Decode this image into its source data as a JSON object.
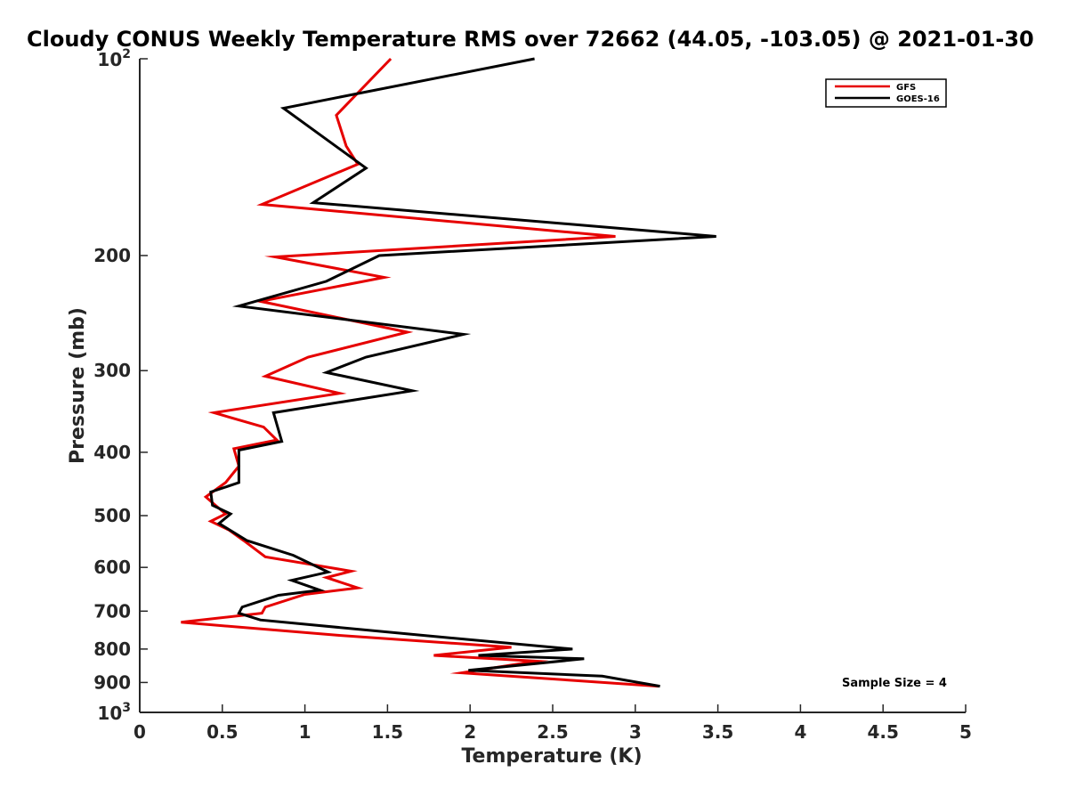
{
  "chart_data": {
    "type": "line",
    "title": "Cloudy CONUS Weekly Temperature RMS over 72662 (44.05, -103.05) @ 2021-01-30",
    "xlabel": "Temperature (K)",
    "ylabel": "Pressure (mb)",
    "xlim": [
      0,
      5
    ],
    "ylim": [
      100,
      1000
    ],
    "yscale": "log",
    "y_reversed": true,
    "grid": false,
    "legend_position": "top-right",
    "x_ticks": [
      "0",
      "0.5",
      "1",
      "1.5",
      "2",
      "2.5",
      "3",
      "3.5",
      "4",
      "4.5",
      "5"
    ],
    "x_tick_values": [
      0,
      0.5,
      1,
      1.5,
      2,
      2.5,
      3,
      3.5,
      4,
      4.5,
      5
    ],
    "y_ticks": [
      {
        "value": 100,
        "base": "10",
        "exp": "2"
      },
      {
        "value": 200,
        "label": "200"
      },
      {
        "value": 300,
        "label": "300"
      },
      {
        "value": 400,
        "label": "400"
      },
      {
        "value": 500,
        "label": "500"
      },
      {
        "value": 600,
        "label": "600"
      },
      {
        "value": 700,
        "label": "700"
      },
      {
        "value": 800,
        "label": "800"
      },
      {
        "value": 900,
        "label": "900"
      },
      {
        "value": 1000,
        "base": "10",
        "exp": "3"
      }
    ],
    "annotation": "Sample Size = 4",
    "series": [
      {
        "name": "GFS",
        "color": "#e60000",
        "points": [
          [
            1.52,
            100
          ],
          [
            1.19,
            122
          ],
          [
            1.25,
            136
          ],
          [
            1.32,
            145
          ],
          [
            0.74,
            167
          ],
          [
            2.88,
            187
          ],
          [
            0.82,
            201
          ],
          [
            1.48,
            216
          ],
          [
            0.73,
            235
          ],
          [
            1.62,
            262
          ],
          [
            1.02,
            286
          ],
          [
            0.76,
            306
          ],
          [
            1.21,
            325
          ],
          [
            0.45,
            348
          ],
          [
            0.75,
            366
          ],
          [
            0.83,
            383
          ],
          [
            0.57,
            395
          ],
          [
            0.6,
            420
          ],
          [
            0.52,
            445
          ],
          [
            0.4,
            468
          ],
          [
            0.47,
            485
          ],
          [
            0.52,
            497
          ],
          [
            0.43,
            510
          ],
          [
            0.54,
            526
          ],
          [
            0.63,
            546
          ],
          [
            0.76,
            578
          ],
          [
            1.28,
            608
          ],
          [
            1.13,
            622
          ],
          [
            1.32,
            645
          ],
          [
            1.0,
            660
          ],
          [
            0.76,
            690
          ],
          [
            0.74,
            705
          ],
          [
            0.25,
            728
          ],
          [
            1.2,
            762
          ],
          [
            2.25,
            795
          ],
          [
            1.78,
            818
          ],
          [
            2.4,
            835
          ],
          [
            1.95,
            870
          ],
          [
            3.14,
            912
          ]
        ]
      },
      {
        "name": "GOES-16",
        "color": "#000000",
        "points": [
          [
            2.39,
            100
          ],
          [
            0.87,
            119
          ],
          [
            1.37,
            147
          ],
          [
            1.05,
            166
          ],
          [
            3.49,
            187
          ],
          [
            1.45,
            200
          ],
          [
            1.13,
            219
          ],
          [
            0.6,
            239
          ],
          [
            1.96,
            264
          ],
          [
            1.37,
            286
          ],
          [
            1.13,
            302
          ],
          [
            1.65,
            322
          ],
          [
            0.81,
            348
          ],
          [
            0.86,
            385
          ],
          [
            0.6,
            397
          ],
          [
            0.6,
            420
          ],
          [
            0.6,
            445
          ],
          [
            0.43,
            460
          ],
          [
            0.44,
            482
          ],
          [
            0.55,
            497
          ],
          [
            0.48,
            514
          ],
          [
            0.65,
            546
          ],
          [
            0.93,
            575
          ],
          [
            1.14,
            610
          ],
          [
            0.92,
            628
          ],
          [
            1.09,
            650
          ],
          [
            0.84,
            662
          ],
          [
            0.62,
            690
          ],
          [
            0.6,
            705
          ],
          [
            0.73,
            722
          ],
          [
            1.73,
            763
          ],
          [
            2.62,
            800
          ],
          [
            2.05,
            818
          ],
          [
            2.69,
            828
          ],
          [
            1.99,
            862
          ],
          [
            2.8,
            880
          ],
          [
            3.15,
            912
          ]
        ]
      }
    ]
  }
}
